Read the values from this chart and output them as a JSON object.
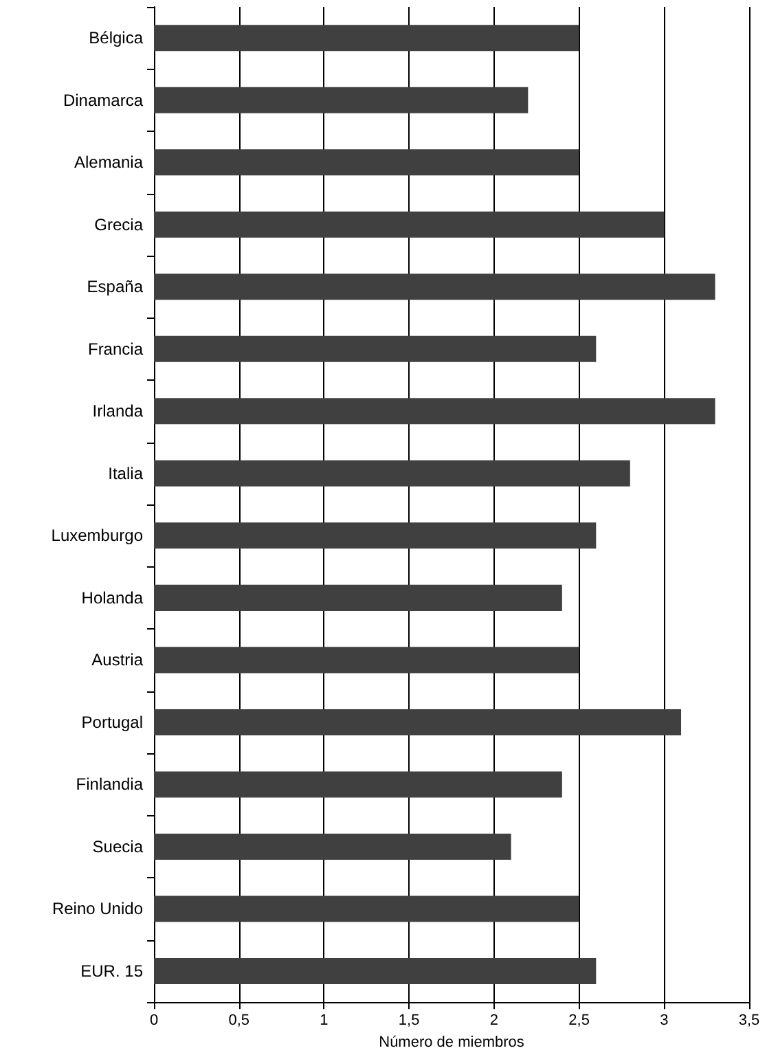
{
  "chart_data": {
    "type": "bar",
    "orientation": "horizontal",
    "xlabel": "Número de miembros",
    "categories": [
      "Bélgica",
      "Dinamarca",
      "Alemania",
      "Grecia",
      "España",
      "Francia",
      "Irlanda",
      "Italia",
      "Luxemburgo",
      "Holanda",
      "Austria",
      "Portugal",
      "Finlandia",
      "Suecia",
      "Reino Unido",
      "EUR. 15"
    ],
    "values": [
      2.5,
      2.2,
      2.5,
      3.0,
      3.3,
      2.6,
      3.3,
      2.8,
      2.6,
      2.4,
      2.5,
      3.1,
      2.4,
      2.1,
      2.5,
      2.6
    ],
    "color": "#404040",
    "xlim": [
      0,
      3.5
    ],
    "xticks": [
      0,
      {
        "value": 0.5,
        "label": "0,5"
      },
      1,
      {
        "value": 1.5,
        "label": "1,5"
      },
      2,
      {
        "value": 2.5,
        "label": "2,5"
      },
      3,
      {
        "value": 3.5,
        "label": "3,5"
      }
    ],
    "grid": "x"
  }
}
